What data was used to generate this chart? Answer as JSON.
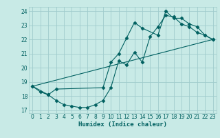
{
  "xlabel": "Humidex (Indice chaleur)",
  "bg_color": "#c8eae6",
  "grid_color": "#a0cccc",
  "line_color": "#006060",
  "xlim": [
    -0.5,
    23.5
  ],
  "ylim": [
    16.8,
    24.3
  ],
  "yticks": [
    17,
    18,
    19,
    20,
    21,
    22,
    23,
    24
  ],
  "xticks": [
    0,
    1,
    2,
    3,
    4,
    5,
    6,
    7,
    8,
    9,
    10,
    11,
    12,
    13,
    14,
    15,
    16,
    17,
    18,
    19,
    20,
    21,
    22,
    23
  ],
  "line1_x": [
    0,
    1,
    2,
    3,
    4,
    5,
    6,
    7,
    8,
    9,
    10,
    11,
    12,
    13,
    14,
    15,
    16,
    17,
    18,
    19,
    20,
    21,
    22,
    23
  ],
  "line1_y": [
    18.7,
    18.3,
    18.1,
    17.7,
    17.4,
    17.3,
    17.2,
    17.2,
    17.4,
    17.7,
    18.6,
    20.5,
    20.2,
    21.1,
    20.4,
    22.2,
    22.9,
    23.7,
    23.6,
    23.1,
    22.9,
    22.5,
    22.3,
    22.0
  ],
  "line2_x": [
    0,
    2,
    3,
    9,
    10,
    11,
    12,
    13,
    14,
    16,
    17,
    18,
    19,
    20,
    21,
    22,
    23
  ],
  "line2_y": [
    18.7,
    18.1,
    18.5,
    18.6,
    20.4,
    21.0,
    22.1,
    23.2,
    22.8,
    22.3,
    24.0,
    23.5,
    23.5,
    23.1,
    22.9,
    22.3,
    22.0
  ],
  "line3_x": [
    0,
    23
  ],
  "line3_y": [
    18.7,
    22.0
  ]
}
